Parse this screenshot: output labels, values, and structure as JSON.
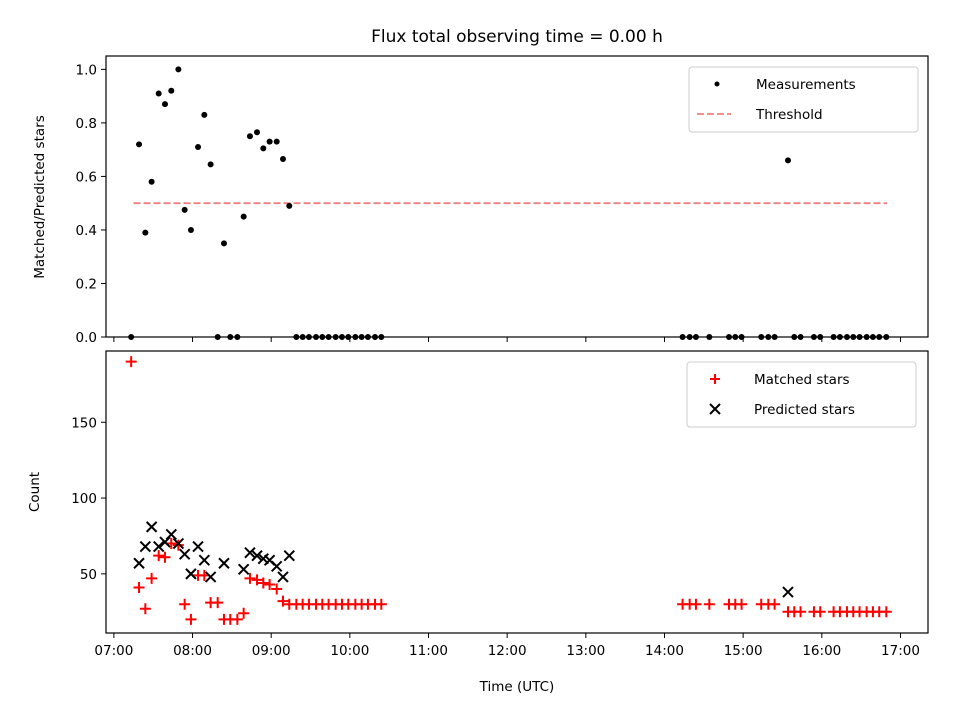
{
  "chart_data": [
    {
      "type": "scatter",
      "title": "Flux total observing time = 0.00 h",
      "xlabel": "",
      "ylabel": "Matched/Predicted stars",
      "xlim": [
        6.9,
        17.35
      ],
      "ylim": [
        0,
        1.05
      ],
      "yticks": [
        0.0,
        0.2,
        0.4,
        0.6,
        0.8,
        1.0
      ],
      "ytick_labels": [
        "0.0",
        "0.2",
        "0.4",
        "0.6",
        "0.8",
        "1.0"
      ],
      "legend": {
        "position": "top-right",
        "entries": [
          "Measurements",
          "Threshold"
        ]
      },
      "threshold": {
        "name": "Threshold",
        "value": 0.5,
        "x_range": [
          7.25,
          16.83
        ],
        "color": "#f08080"
      },
      "series": [
        {
          "name": "Measurements",
          "marker": "dot",
          "color": "#000000",
          "x": [
            7.22,
            7.32,
            7.4,
            7.48,
            7.57,
            7.65,
            7.73,
            7.82,
            7.9,
            7.98,
            8.07,
            8.15,
            8.23,
            8.32,
            8.4,
            8.48,
            8.57,
            8.65,
            8.73,
            8.82,
            8.9,
            8.98,
            9.07,
            9.15,
            9.23,
            9.32,
            9.4,
            9.48,
            9.57,
            9.65,
            9.73,
            9.82,
            9.9,
            9.98,
            10.07,
            10.15,
            10.23,
            10.32,
            10.4,
            14.23,
            14.32,
            14.4,
            14.57,
            14.82,
            14.9,
            14.98,
            15.23,
            15.32,
            15.4,
            15.57,
            15.65,
            15.73,
            15.9,
            15.98,
            16.15,
            16.23,
            16.32,
            16.4,
            16.48,
            16.57,
            16.65,
            16.73,
            16.82
          ],
          "y": [
            0.0,
            0.72,
            0.39,
            0.58,
            0.91,
            0.87,
            0.92,
            1.0,
            0.475,
            0.4,
            0.71,
            0.83,
            0.645,
            0.0,
            0.35,
            0.0,
            0.0,
            0.45,
            0.75,
            0.765,
            0.705,
            0.73,
            0.73,
            0.665,
            0.49,
            0.0,
            0.0,
            0.0,
            0.0,
            0.0,
            0.0,
            0.0,
            0.0,
            0.0,
            0.0,
            0.0,
            0.0,
            0.0,
            0.0,
            0.0,
            0.0,
            0.0,
            0.0,
            0.0,
            0.0,
            0.0,
            0.0,
            0.0,
            0.0,
            0.66,
            0.0,
            0.0,
            0.0,
            0.0,
            0.0,
            0.0,
            0.0,
            0.0,
            0.0,
            0.0,
            0.0,
            0.0,
            0.0
          ]
        }
      ]
    },
    {
      "type": "scatter",
      "title": "",
      "xlabel": "Time (UTC)",
      "ylabel": "Count",
      "xlim": [
        6.9,
        17.35
      ],
      "ylim": [
        11,
        197
      ],
      "yticks": [
        50,
        100,
        150
      ],
      "ytick_labels": [
        "50",
        "100",
        "150"
      ],
      "xticks": [
        7,
        8,
        9,
        10,
        11,
        12,
        13,
        14,
        15,
        16,
        17
      ],
      "xtick_labels": [
        "07:00",
        "08:00",
        "09:00",
        "10:00",
        "11:00",
        "12:00",
        "13:00",
        "14:00",
        "15:00",
        "16:00",
        "17:00"
      ],
      "legend": {
        "position": "top-right",
        "entries": [
          "Matched stars",
          "Predicted stars"
        ]
      },
      "series": [
        {
          "name": "Matched stars",
          "marker": "plus",
          "color": "#ff0000",
          "x": [
            7.22,
            7.32,
            7.4,
            7.48,
            7.57,
            7.65,
            7.73,
            7.82,
            7.9,
            7.98,
            8.07,
            8.15,
            8.23,
            8.32,
            8.4,
            8.48,
            8.57,
            8.65,
            8.73,
            8.82,
            8.9,
            8.98,
            9.07,
            9.15,
            9.23,
            9.32,
            9.4,
            9.48,
            9.57,
            9.65,
            9.73,
            9.82,
            9.9,
            9.98,
            10.07,
            10.15,
            10.23,
            10.32,
            10.4,
            14.23,
            14.32,
            14.4,
            14.57,
            14.82,
            14.9,
            14.98,
            15.23,
            15.32,
            15.4,
            15.57,
            15.65,
            15.73,
            15.9,
            15.98,
            16.15,
            16.23,
            16.32,
            16.4,
            16.48,
            16.57,
            16.65,
            16.73,
            16.82
          ],
          "y": [
            190,
            41,
            27,
            47,
            62,
            61,
            70,
            69,
            30,
            20,
            49,
            49,
            31,
            31,
            20,
            20,
            20,
            24,
            47,
            46,
            44,
            43,
            40,
            32,
            30,
            30,
            30,
            30,
            30,
            30,
            30,
            30,
            30,
            30,
            30,
            30,
            30,
            30,
            30,
            30,
            30,
            30,
            30,
            30,
            30,
            30,
            30,
            30,
            30,
            25,
            25,
            25,
            25,
            25,
            25,
            25,
            25,
            25,
            25,
            25,
            25,
            25,
            25
          ]
        },
        {
          "name": "Predicted stars",
          "marker": "x",
          "color": "#000000",
          "x": [
            7.32,
            7.4,
            7.48,
            7.57,
            7.65,
            7.73,
            7.82,
            7.9,
            7.98,
            8.07,
            8.15,
            8.23,
            8.4,
            8.65,
            8.73,
            8.82,
            8.9,
            8.98,
            9.07,
            9.15,
            9.23,
            15.57
          ],
          "y": [
            57,
            68,
            81,
            68,
            71,
            76,
            70,
            63,
            50,
            68,
            59,
            48,
            57,
            53,
            64,
            62,
            60,
            59,
            55,
            48,
            62,
            38
          ]
        }
      ]
    }
  ]
}
